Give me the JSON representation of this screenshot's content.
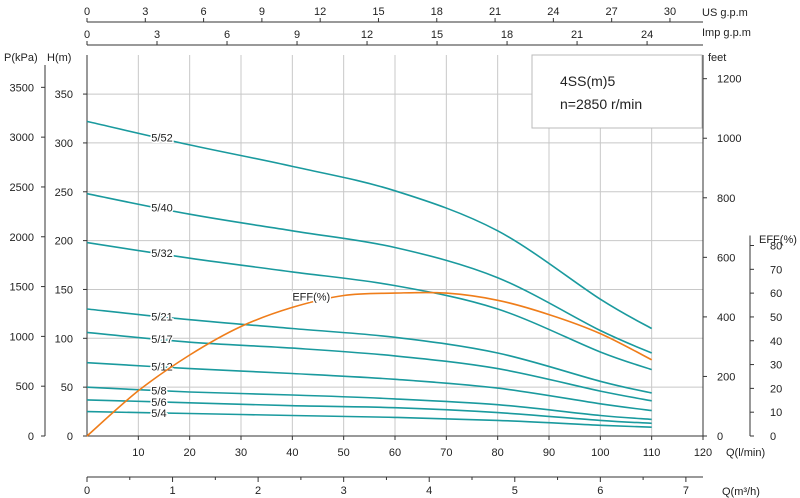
{
  "chart_data": {
    "type": "line",
    "title": "4SS(m)5",
    "subtitle": "n=2850 r/min",
    "x_axis": {
      "label": "Q(l/min)",
      "range": [
        0,
        120
      ],
      "ticks": [
        "10",
        "20",
        "30",
        "40",
        "50",
        "60",
        "70",
        "80",
        "90",
        "100",
        "110",
        "120"
      ],
      "tick_values": [
        10,
        20,
        30,
        40,
        50,
        60,
        70,
        80,
        90,
        100,
        110,
        120
      ]
    },
    "x_axis_m3h": {
      "label": "Q(m³/h)",
      "ticks": [
        "0",
        "1",
        "2",
        "3",
        "4",
        "5",
        "6",
        "7"
      ],
      "tick_values": [
        0,
        1,
        2,
        3,
        4,
        5,
        6,
        7
      ]
    },
    "x_axis_us_gpm": {
      "label": "US  g.p.m",
      "ticks": [
        "0",
        "3",
        "6",
        "9",
        "12",
        "15",
        "18",
        "21",
        "24",
        "27",
        "30"
      ],
      "tick_values": [
        0,
        3,
        6,
        9,
        12,
        15,
        18,
        21,
        24,
        27,
        30
      ]
    },
    "x_axis_imp_gpm": {
      "label": "Imp  g.p.m",
      "ticks": [
        "0",
        "3",
        "6",
        "9",
        "12",
        "15",
        "18",
        "21",
        "24"
      ],
      "tick_values": [
        0,
        3,
        6,
        9,
        12,
        15,
        18,
        21,
        24
      ]
    },
    "y_axis_head": {
      "label": "H(m)",
      "range": [
        0,
        390
      ],
      "ticks": [
        "0",
        "50",
        "100",
        "150",
        "200",
        "250",
        "300",
        "350"
      ],
      "tick_values": [
        0,
        50,
        100,
        150,
        200,
        250,
        300,
        350
      ]
    },
    "y_axis_pressure": {
      "label": "P(kPa)",
      "ticks": [
        "0",
        "500",
        "1000",
        "1500",
        "2000",
        "2500",
        "3000",
        "3500"
      ],
      "tick_values": [
        0,
        500,
        1000,
        1500,
        2000,
        2500,
        3000,
        3500
      ]
    },
    "y_axis_feet": {
      "label": "feet",
      "ticks": [
        "0",
        "200",
        "400",
        "600",
        "800",
        "1000",
        "1200"
      ],
      "tick_values": [
        0,
        200,
        400,
        600,
        800,
        1000,
        1200
      ]
    },
    "y_axis_eff": {
      "label": "EFF(%)",
      "range": [
        0,
        80
      ],
      "ticks": [
        "0",
        "10",
        "20",
        "30",
        "40",
        "50",
        "60",
        "70",
        "80"
      ],
      "tick_values": [
        0,
        10,
        20,
        30,
        40,
        50,
        60,
        70,
        80
      ]
    },
    "series": [
      {
        "name": "5/52",
        "x": [
          0,
          20,
          40,
          60,
          80,
          100,
          110
        ],
        "values": [
          322,
          298,
          276,
          251,
          210,
          140,
          110
        ]
      },
      {
        "name": "5/40",
        "x": [
          0,
          20,
          40,
          60,
          80,
          100,
          110
        ],
        "values": [
          248,
          227,
          210,
          193,
          162,
          108,
          85
        ]
      },
      {
        "name": "5/32",
        "x": [
          0,
          20,
          40,
          60,
          80,
          100,
          110
        ],
        "values": [
          198,
          182,
          168,
          154,
          130,
          86,
          68
        ]
      },
      {
        "name": "5/21",
        "x": [
          0,
          20,
          40,
          60,
          80,
          100,
          110
        ],
        "values": [
          130,
          119,
          110,
          101,
          85,
          56,
          44
        ]
      },
      {
        "name": "5/17",
        "x": [
          0,
          20,
          40,
          60,
          80,
          100,
          110
        ],
        "values": [
          106,
          96,
          90,
          82,
          69,
          46,
          36
        ]
      },
      {
        "name": "5/12",
        "x": [
          0,
          20,
          40,
          60,
          80,
          100,
          110
        ],
        "values": [
          75,
          69,
          64,
          58,
          49,
          33,
          26
        ]
      },
      {
        "name": "5/8",
        "x": [
          0,
          20,
          40,
          60,
          80,
          100,
          110
        ],
        "values": [
          50,
          45,
          42,
          38,
          32,
          21,
          17
        ]
      },
      {
        "name": "5/6",
        "x": [
          0,
          20,
          40,
          60,
          80,
          100,
          110
        ],
        "values": [
          37,
          34,
          31,
          29,
          24,
          16,
          13
        ]
      },
      {
        "name": "5/4",
        "x": [
          0,
          20,
          40,
          60,
          80,
          100,
          110
        ],
        "values": [
          25,
          23,
          21,
          19,
          16,
          11,
          9
        ]
      }
    ],
    "efficiency": {
      "name": "EFF(%)",
      "x": [
        0,
        10,
        20,
        30,
        40,
        50,
        60,
        70,
        80,
        90,
        100,
        110
      ],
      "values": [
        0,
        19,
        34,
        46,
        54,
        59,
        60,
        60,
        57,
        51,
        43,
        32
      ]
    },
    "grid": true,
    "colors": {
      "head": "#1a9a9e",
      "efficiency": "#ef7d1a"
    }
  }
}
